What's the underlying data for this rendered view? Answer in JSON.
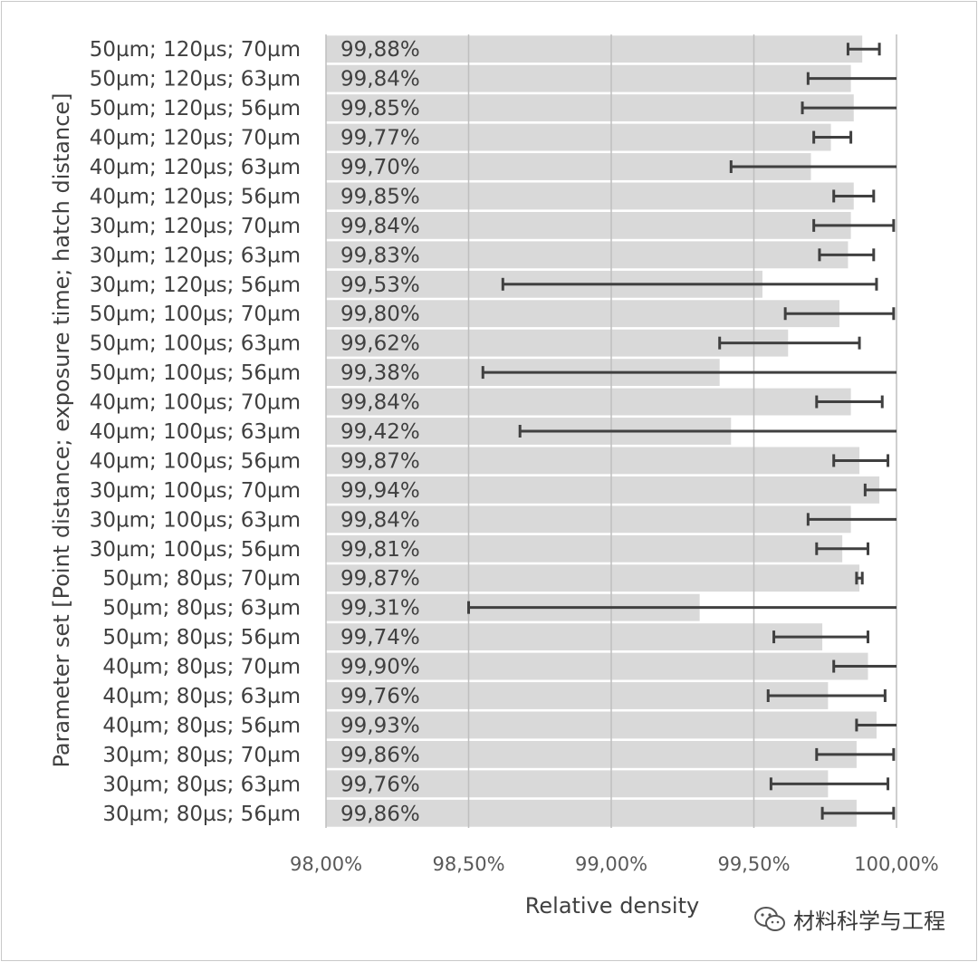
{
  "chart_data": {
    "type": "bar",
    "orientation": "horizontal",
    "ylabel": "Parameter set [Point distance; exposure time; hatch distance]",
    "xlabel": "Relative density",
    "xlim": [
      98.0,
      100.0
    ],
    "xticks": [
      "98,00%",
      "98,50%",
      "99,00%",
      "99,50%",
      "100,00%"
    ],
    "xtick_values": [
      98.0,
      98.5,
      99.0,
      99.5,
      100.0
    ],
    "grid": true,
    "categories": [
      "50µm; 120µs; 70µm",
      "50µm; 120µs; 63µm",
      "50µm; 120µs; 56µm",
      "40µm; 120µs; 70µm",
      "40µm; 120µs; 63µm",
      "40µm; 120µs; 56µm",
      "30µm; 120µs; 70µm",
      "30µm; 120µs; 63µm",
      "30µm; 120µs; 56µm",
      "50µm; 100µs; 70µm",
      "50µm; 100µs; 63µm",
      "50µm; 100µs; 56µm",
      "40µm; 100µs; 70µm",
      "40µm; 100µs; 63µm",
      "40µm; 100µs; 56µm",
      "30µm; 100µs; 70µm",
      "30µm; 100µs; 63µm",
      "30µm; 100µs; 56µm",
      "50µm; 80µs; 70µm",
      "50µm; 80µs; 63µm",
      "50µm; 80µs; 56µm",
      "40µm; 80µs; 70µm",
      "40µm; 80µs; 63µm",
      "40µm; 80µs; 56µm",
      "30µm; 80µs; 70µm",
      "30µm; 80µs; 63µm",
      "30µm; 80µs; 56µm"
    ],
    "value_labels": [
      "99,88%",
      "99,84%",
      "99,85%",
      "99,77%",
      "99,70%",
      "99,85%",
      "99,84%",
      "99,83%",
      "99,53%",
      "99,80%",
      "99,62%",
      "99,38%",
      "99,84%",
      "99,42%",
      "99,87%",
      "99,94%",
      "99,84%",
      "99,81%",
      "99,87%",
      "99,31%",
      "99,74%",
      "99,90%",
      "99,76%",
      "99,93%",
      "99,86%",
      "99,76%",
      "99,86%"
    ],
    "values": [
      99.88,
      99.84,
      99.85,
      99.77,
      99.7,
      99.85,
      99.84,
      99.83,
      99.53,
      99.8,
      99.62,
      99.38,
      99.84,
      99.42,
      99.87,
      99.94,
      99.84,
      99.81,
      99.87,
      99.31,
      99.74,
      99.9,
      99.76,
      99.93,
      99.86,
      99.76,
      99.86
    ],
    "error_low": [
      99.83,
      99.69,
      99.67,
      99.71,
      99.42,
      99.78,
      99.71,
      99.73,
      98.62,
      99.61,
      99.38,
      98.55,
      99.72,
      98.68,
      99.78,
      99.89,
      99.69,
      99.72,
      99.86,
      98.5,
      99.57,
      99.78,
      99.55,
      99.86,
      99.72,
      99.56,
      99.74
    ],
    "error_high": [
      99.94,
      100.0,
      100.0,
      99.84,
      100.0,
      99.92,
      99.99,
      99.92,
      99.93,
      99.99,
      99.87,
      100.0,
      99.95,
      100.0,
      99.97,
      100.0,
      100.0,
      99.9,
      99.88,
      100.0,
      99.9,
      100.0,
      99.96,
      100.0,
      99.99,
      99.97,
      99.99
    ],
    "bar_color": "#d9d9d9",
    "grid_color": "#bfbfbf",
    "errorbar_color": "#404040"
  },
  "watermark": {
    "text": "材料科学与工程",
    "icon": "wechat-icon"
  }
}
